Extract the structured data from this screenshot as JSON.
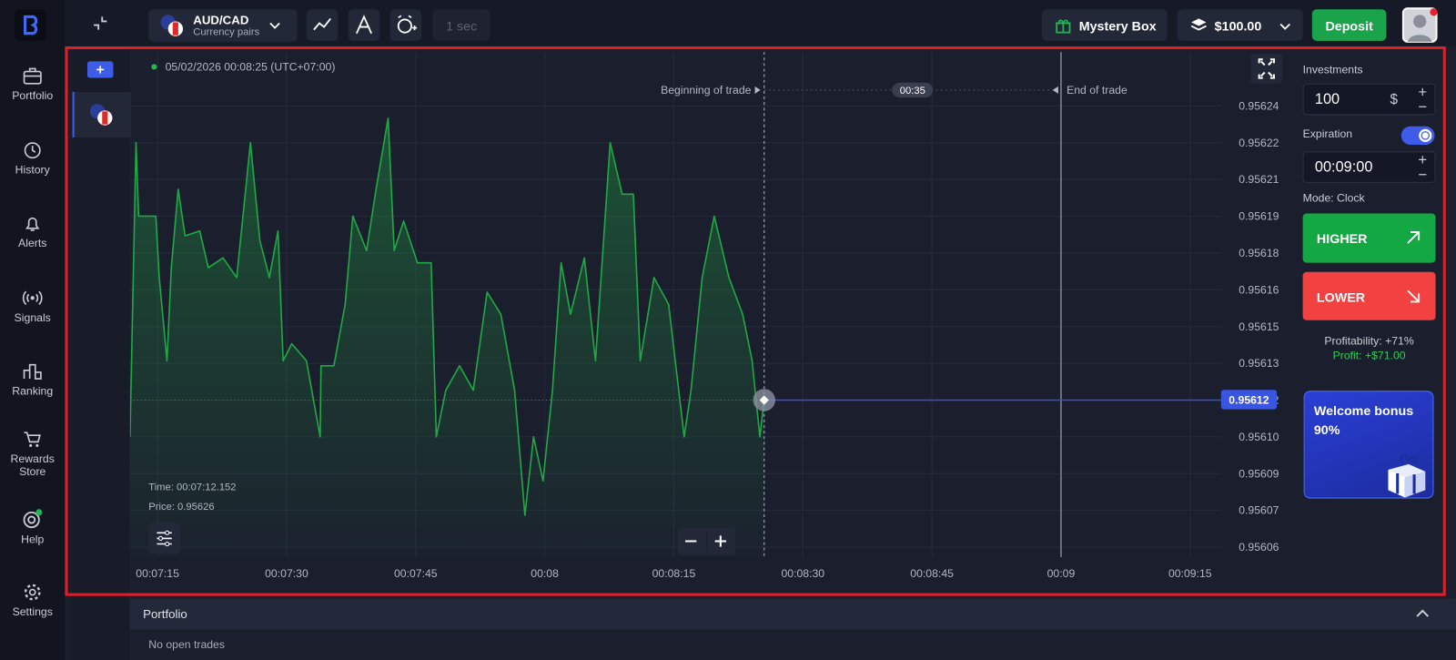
{
  "sidebar": {
    "portfolio": "Portfolio",
    "history": "History",
    "alerts": "Alerts",
    "signals": "Signals",
    "ranking": "Ranking",
    "rewards": "Rewards Store",
    "help": "Help",
    "settings": "Settings"
  },
  "topbar": {
    "asset": "AUD/CAD",
    "asset_type": "Currency pairs",
    "timeframe": "1 sec",
    "mystery_box": "Mystery Box",
    "balance": "$100.00",
    "deposit": "Deposit"
  },
  "chart": {
    "type": "line",
    "datetime": "05/02/2026 00:08:25 (UTC+07:00)",
    "beginning_label": "Beginning of trade",
    "end_label": "End of trade",
    "countdown": "00:35",
    "tooltip_time": "Time: 00:07:12.152",
    "tooltip_price": "Price: 0.95626",
    "current_price": 0.95612,
    "trade_start": 505.5,
    "trade_end": 540,
    "color": "#1fa843",
    "grid": true,
    "x": [
      431.8,
      432.5,
      432.8,
      434.8,
      435.2,
      436.1,
      436.6,
      437.4,
      438.2,
      439.9,
      440.9,
      442.6,
      444.2,
      445.8,
      446.9,
      448,
      449,
      449.6,
      450.6,
      452.3,
      453.9,
      454,
      455.5,
      456.8,
      457.7,
      459.3,
      460.4,
      461.8,
      462.5,
      463.6,
      465.2,
      466.8,
      467.4,
      468.5,
      470.1,
      471.7,
      473.3,
      474.9,
      476.5,
      477.7,
      478.7,
      479.8,
      480.9,
      481.9,
      483,
      484.6,
      485.9,
      487.6,
      489,
      490.3,
      491.1,
      492.7,
      494.4,
      496.2,
      497,
      498.3,
      499.7,
      501.4,
      503,
      504.1,
      505,
      505.5
    ],
    "values": [
      0.956105,
      0.956225,
      0.956195,
      0.956195,
      0.95617,
      0.956136,
      0.956174,
      0.956206,
      0.956187,
      0.956189,
      0.956174,
      0.956178,
      0.95617,
      0.956225,
      0.956185,
      0.95617,
      0.956189,
      0.956136,
      0.956143,
      0.956136,
      0.956105,
      0.956134,
      0.956134,
      0.956159,
      0.956195,
      0.956181,
      0.956206,
      0.956235,
      0.956181,
      0.956193,
      0.956176,
      0.956176,
      0.956105,
      0.956124,
      0.956134,
      0.956124,
      0.956164,
      0.956155,
      0.956124,
      0.956073,
      0.956105,
      0.956087,
      0.956124,
      0.956176,
      0.956155,
      0.956178,
      0.956136,
      0.956225,
      0.956204,
      0.956204,
      0.956136,
      0.95617,
      0.956159,
      0.956105,
      0.956124,
      0.95617,
      0.956195,
      0.95617,
      0.956155,
      0.956136,
      0.956105,
      0.95612
    ],
    "xlim": [
      431.8,
      558.6
    ],
    "ylim": [
      0.956056,
      0.956262
    ],
    "xticks": [
      {
        "value": 435,
        "label": "00:07:15"
      },
      {
        "value": 450,
        "label": "00:07:30"
      },
      {
        "value": 465,
        "label": "00:07:45"
      },
      {
        "value": 480,
        "label": "00:08"
      },
      {
        "value": 495,
        "label": "00:08:15"
      },
      {
        "value": 510,
        "label": "00:08:30"
      },
      {
        "value": 525,
        "label": "00:08:45"
      },
      {
        "value": 540,
        "label": "00:09"
      },
      {
        "value": 555,
        "label": "00:09:15"
      }
    ],
    "yticks": [
      {
        "value": 0.95624,
        "label": "0.95624"
      },
      {
        "value": 0.956225,
        "label": "0.95622"
      },
      {
        "value": 0.95621,
        "label": "0.95621"
      },
      {
        "value": 0.956195,
        "label": "0.95619"
      },
      {
        "value": 0.95618,
        "label": "0.95618"
      },
      {
        "value": 0.956165,
        "label": "0.95616"
      },
      {
        "value": 0.95615,
        "label": "0.95615"
      },
      {
        "value": 0.956135,
        "label": "0.95613"
      },
      {
        "value": 0.95612,
        "label": "0.95612"
      },
      {
        "value": 0.956105,
        "label": "0.95610"
      },
      {
        "value": 0.95609,
        "label": "0.95609"
      },
      {
        "value": 0.956075,
        "label": "0.95607"
      },
      {
        "value": 0.95606,
        "label": "0.95606"
      }
    ]
  },
  "panel": {
    "investments_label": "Investments",
    "investment": "100",
    "currency": "$",
    "expiration_label": "Expiration",
    "expiration": "00:09:00",
    "mode": "Mode: Clock",
    "higher": "HIGHER",
    "lower": "LOWER",
    "profitability": "Profitability: +71%",
    "profit": "Profit: +$71.00",
    "bonus_title": "Welcome bonus",
    "bonus_value": "90%"
  },
  "portfolio": {
    "title": "Portfolio",
    "empty": "No open trades"
  }
}
